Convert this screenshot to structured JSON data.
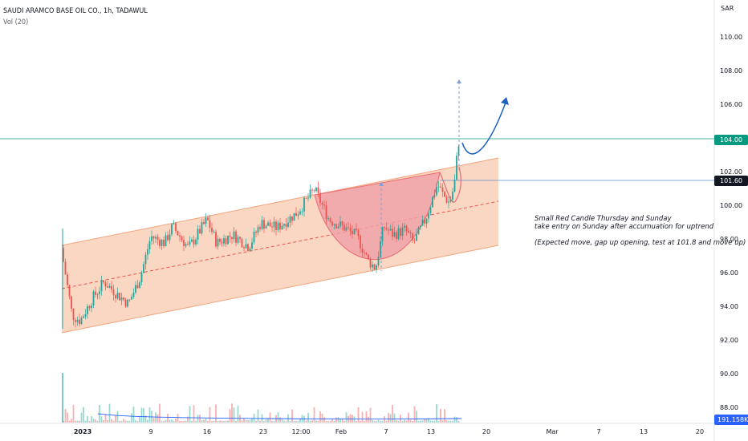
{
  "header": {
    "symbol_title": "SAUDI ARAMCO BASE OIL CO., 1h, TADAWUL",
    "volume_indicator": "Vol (20)"
  },
  "price_axis": {
    "currency": "SAR",
    "ticks": [
      "110.00",
      "108.00",
      "106.00",
      "104.00",
      "102.00",
      "100.00",
      "98.00",
      "96.00",
      "94.00",
      "92.00",
      "90.00",
      "88.00"
    ]
  },
  "time_axis": {
    "ticks": [
      {
        "label": "2023",
        "bold": true
      },
      {
        "label": "9",
        "bold": false
      },
      {
        "label": "16",
        "bold": false
      },
      {
        "label": "23",
        "bold": false
      },
      {
        "label": "12:00",
        "bold": false
      },
      {
        "label": "Feb",
        "bold": false
      },
      {
        "label": "7",
        "bold": false
      },
      {
        "label": "13",
        "bold": false
      },
      {
        "label": "20",
        "bold": false
      },
      {
        "label": "Mar",
        "bold": false
      },
      {
        "label": "7",
        "bold": false
      },
      {
        "label": "13",
        "bold": false
      },
      {
        "label": "20",
        "bold": false
      }
    ]
  },
  "badges": {
    "level_price": "104.00",
    "level_color": "#089981",
    "current_price": "101.60",
    "current_color": "#131722",
    "volume": "191.158K",
    "volume_color": "#2962ff"
  },
  "annotation": {
    "line1": "Small Red Candle Thursday and Sunday",
    "line2": "take entry on Sunday after accumuation for uptrend",
    "line3": "(Expected move, gap up opening, test at 101.8 and move up)"
  },
  "colors": {
    "up": "#26a69a",
    "down": "#ef5350",
    "channel_fill": "#f7c9ae",
    "channel_edge": "#f2a57f",
    "cup_fill": "#f0a0a8",
    "arrow": "#1e5fbf"
  }
}
